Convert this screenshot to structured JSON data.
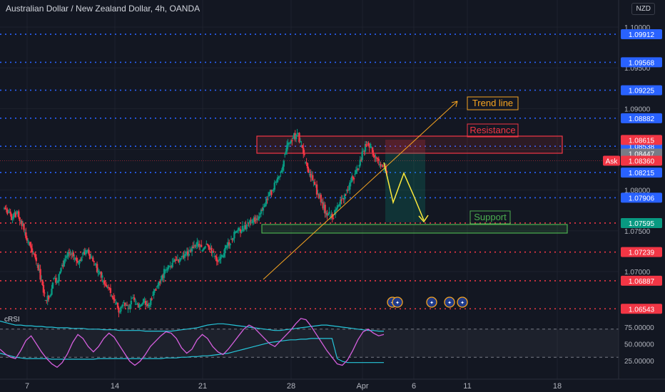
{
  "header": {
    "title": "Australian Dollar / New Zealand Dollar, 4h, OANDA",
    "currency": "NZD"
  },
  "chart_data": {
    "type": "candlestick",
    "price_ticks": [
      "1.10000",
      "1.09500",
      "1.09000",
      "1.08500",
      "1.08000",
      "1.07500",
      "1.07000"
    ],
    "price_axis_range": [
      1.065,
      1.102
    ],
    "dashed_levels": [
      {
        "label": "1.09912",
        "value": 1.09912,
        "color": "#2962ff"
      },
      {
        "label": "1.09568",
        "value": 1.09568,
        "color": "#2962ff"
      },
      {
        "label": "1.09225",
        "value": 1.09225,
        "color": "#2962ff"
      },
      {
        "label": "1.08882",
        "value": 1.08882,
        "color": "#2962ff"
      },
      {
        "label": "1.08538",
        "value": 1.08538,
        "color": "#2962ff"
      },
      {
        "label": "1.08215",
        "value": 1.08215,
        "color": "#2962ff"
      },
      {
        "label": "1.07906",
        "value": 1.07906,
        "color": "#2962ff"
      },
      {
        "label": "1.07595",
        "value": 1.07595,
        "color": "#f23645"
      },
      {
        "label": "1.07239",
        "value": 1.07239,
        "color": "#f23645"
      },
      {
        "label": "1.06887",
        "value": 1.06887,
        "color": "#f23645"
      },
      {
        "label": "1.06543",
        "value": 1.06543,
        "color": "#f23645"
      }
    ],
    "price_tags": [
      {
        "label": "1.08615",
        "value": 1.08615,
        "color": "#f23645"
      },
      {
        "label": "1.08447",
        "value": 1.08447,
        "color": "#787b86"
      },
      {
        "label": "1.08360",
        "value": 1.0836,
        "color": "#f23645"
      },
      {
        "label": "1.07595",
        "value": 1.07595,
        "color": "#089981"
      }
    ],
    "ask_label": "Ask",
    "x_ticks": [
      "7",
      "14",
      "21",
      "28",
      "Apr",
      "6",
      "11",
      "18"
    ],
    "close_path": [
      1.0778,
      1.0773,
      1.0765,
      1.0772,
      1.0762,
      1.0748,
      1.0736,
      1.0722,
      1.0708,
      1.069,
      1.0665,
      1.067,
      1.0692,
      1.0688,
      1.0708,
      1.0718,
      1.0722,
      1.0716,
      1.071,
      1.0722,
      1.0725,
      1.0717,
      1.0709,
      1.0698,
      1.0689,
      1.0681,
      1.067,
      1.0661,
      1.0651,
      1.0662,
      1.0655,
      1.0668,
      1.066,
      1.0658,
      1.0664,
      1.0658,
      1.0671,
      1.0682,
      1.069,
      1.0702,
      1.0706,
      1.0712,
      1.0715,
      1.0719,
      1.0722,
      1.0726,
      1.0732,
      1.0734,
      1.0726,
      1.0734,
      1.0729,
      1.0719,
      1.0714,
      1.0718,
      1.0731,
      1.074,
      1.0748,
      1.0752,
      1.0752,
      1.076,
      1.076,
      1.0765,
      1.0771,
      1.078,
      1.0793,
      1.08,
      1.081,
      1.0822,
      1.0844,
      1.0858,
      1.0864,
      1.087,
      1.0855,
      1.0834,
      1.082,
      1.081,
      1.0795,
      1.0785,
      1.0772,
      1.0768,
      1.077,
      1.078,
      1.079,
      1.08,
      1.081,
      1.082,
      1.083,
      1.0848,
      1.0858,
      1.0852,
      1.084,
      1.0832,
      1.0826
    ],
    "crsi": {
      "label": "cRSI",
      "ticks": [
        "75.00000",
        "50.00000",
        "25.00000"
      ],
      "range": [
        10,
        92
      ],
      "bands": [
        72,
        30
      ],
      "value_path": [
        42,
        35,
        30,
        28,
        40,
        55,
        62,
        50,
        38,
        28,
        20,
        15,
        22,
        35,
        52,
        64,
        58,
        46,
        38,
        46,
        58,
        66,
        60,
        48,
        36,
        24,
        18,
        24,
        34,
        46,
        54,
        62,
        68,
        66,
        58,
        44,
        36,
        42,
        56,
        64,
        58,
        46,
        38,
        34,
        42,
        52,
        62,
        72,
        78,
        74,
        66,
        58,
        50,
        46,
        54,
        62,
        70,
        80,
        88,
        86,
        76,
        64,
        52,
        40,
        30,
        20,
        18,
        26,
        40,
        56,
        68,
        72,
        66,
        62,
        64
      ],
      "upper_path": [
        84,
        82,
        80,
        78,
        78,
        77,
        77,
        76,
        76,
        75,
        75,
        74,
        74,
        74,
        73,
        73,
        73,
        72,
        72,
        72,
        71,
        71,
        71,
        70,
        70,
        70,
        70,
        70,
        69,
        69,
        69,
        69,
        69,
        69,
        70,
        71,
        72,
        73,
        74,
        76,
        78,
        79,
        80,
        80,
        79,
        78,
        77,
        76,
        75,
        74,
        73,
        72,
        71,
        70,
        70,
        71,
        72,
        73,
        74,
        75,
        76,
        77,
        78,
        78,
        77,
        76,
        75,
        74,
        73,
        72,
        71,
        70,
        70,
        69,
        69
      ],
      "lower_path": [
        36,
        34,
        32,
        30,
        29,
        28,
        28,
        28,
        28,
        28,
        27,
        27,
        27,
        27,
        27,
        27,
        27,
        27,
        27,
        28,
        28,
        28,
        28,
        28,
        28,
        28,
        28,
        28,
        28,
        28,
        28,
        28,
        29,
        29,
        29,
        30,
        30,
        31,
        31,
        32,
        32,
        33,
        34,
        35,
        36,
        38,
        40,
        42,
        44,
        46,
        48,
        50,
        52,
        53,
        54,
        55,
        56,
        56,
        57,
        57,
        58,
        58,
        58,
        58,
        58,
        28,
        24,
        22,
        22,
        22,
        22,
        22,
        22,
        22,
        22
      ]
    },
    "annotations": [
      {
        "text": "Trend line",
        "color": "#f7a521"
      },
      {
        "text": "Resistance",
        "color": "#f23645"
      },
      {
        "text": "Support",
        "color": "#4caf50"
      }
    ],
    "event_flags": [
      {
        "icon": "au-flag-icon"
      },
      {
        "icon": "au-flag-icon"
      },
      {
        "icon": "nz-flag-icon"
      },
      {
        "icon": "au-flag-icon"
      },
      {
        "icon": "nz-flag-icon"
      }
    ]
  }
}
